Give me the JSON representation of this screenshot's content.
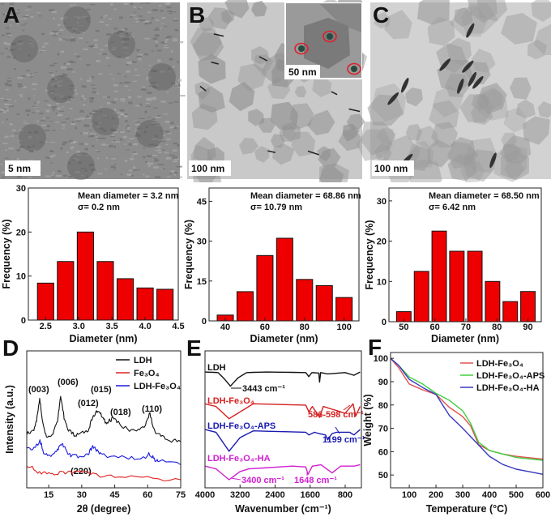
{
  "images": [
    {
      "label": "A",
      "scale_bar": "5 nm"
    },
    {
      "label": "B",
      "scale_bar": "100 nm",
      "inset_scale_bar": "50 nm",
      "inset_marker_color": "#e0202a"
    },
    {
      "label": "C",
      "scale_bar": "100 nm"
    }
  ],
  "chart_data": [
    {
      "type": "bar",
      "panel": "A",
      "annotation": [
        "Mean diameter = 3.2 nm",
        "σ= 0.2 nm"
      ],
      "xlabel": "Diameter (nm)",
      "ylabel": "Frequency (%)",
      "x": [
        2.5,
        2.8,
        3.1,
        3.4,
        3.7,
        4.0,
        4.3
      ],
      "values": [
        8.4,
        13.3,
        20.0,
        13.3,
        9.4,
        7.3,
        7.0
      ],
      "xlim": [
        2.24,
        4.5
      ],
      "ylim": [
        0,
        30
      ],
      "xticks": [
        "2.5",
        "3.0",
        "3.5",
        "4.0",
        "4.5"
      ],
      "yticks": [
        "0",
        "10",
        "20",
        "30"
      ],
      "bar_color": "#ee0000"
    },
    {
      "type": "bar",
      "panel": "B",
      "annotation": [
        "Mean diameter = 68.86 nm",
        "σ= 10.79 nm"
      ],
      "xlabel": "Diameter (nm)",
      "ylabel": "Frequency (%)",
      "x": [
        40,
        50,
        60,
        70,
        80,
        90,
        100
      ],
      "values": [
        2.2,
        11.0,
        24.6,
        31.1,
        15.6,
        13.3,
        8.8
      ],
      "xlim": [
        31.8,
        107.5
      ],
      "ylim": [
        0,
        50
      ],
      "xticks": [
        "40",
        "60",
        "80",
        "100"
      ],
      "yticks": [
        "0",
        "15",
        "30",
        "45"
      ],
      "bar_color": "#ee0000"
    },
    {
      "type": "bar",
      "panel": "C",
      "annotation": [
        "Mean diameter = 68.50 nm",
        "σ= 6.42 nm"
      ],
      "xlabel": "Diameter (nm)",
      "ylabel": "Frequency (%)",
      "x": [
        50,
        55.7,
        61.4,
        67.1,
        72.9,
        78.6,
        84.3,
        90
      ],
      "values": [
        2.5,
        12.5,
        22.5,
        17.5,
        17.5,
        10.0,
        5.0,
        7.5
      ],
      "xlim": [
        45.2,
        94.3
      ],
      "ylim": [
        0,
        33.2
      ],
      "xticks": [
        "50",
        "60",
        "70",
        "80",
        "90"
      ],
      "yticks": [
        "0",
        "10",
        "20",
        "30"
      ],
      "bar_color": "#ee0000"
    },
    {
      "type": "line",
      "panel": "D",
      "xlabel": "2θ (degree)",
      "ylabel": "Intensity (a.u.)",
      "xlim": [
        5,
        75
      ],
      "ylim": [
        0,
        101
      ],
      "xticks": [
        "15",
        "30",
        "45",
        "60",
        "75"
      ],
      "yticks": [],
      "legend": "top-right",
      "series": [
        {
          "name": "LDH",
          "color": "#111111",
          "points": [
            [
              5,
              40
            ],
            [
              8,
              41
            ],
            [
              9.5,
              50
            ],
            [
              10.9,
              66
            ],
            [
              12,
              50
            ],
            [
              14,
              37
            ],
            [
              17,
              40
            ],
            [
              19,
              50
            ],
            [
              20.4,
              68
            ],
            [
              22,
              52
            ],
            [
              24,
              42
            ],
            [
              27,
              39
            ],
            [
              30,
              40
            ],
            [
              33,
              43
            ],
            [
              35,
              52
            ],
            [
              37,
              57
            ],
            [
              39,
              54
            ],
            [
              41,
              48
            ],
            [
              43,
              50
            ],
            [
              45,
              51
            ],
            [
              47,
              47
            ],
            [
              50,
              44
            ],
            [
              55,
              41
            ],
            [
              59,
              46
            ],
            [
              61,
              55
            ],
            [
              63,
              42
            ],
            [
              66,
              38
            ],
            [
              70,
              35
            ],
            [
              75,
              34
            ]
          ]
        },
        {
          "name": "Fe₃O₄",
          "color": "#e02020",
          "points": [
            [
              5,
              17
            ],
            [
              10,
              12
            ],
            [
              15,
              10
            ],
            [
              20,
              11
            ],
            [
              25,
              12
            ],
            [
              29,
              13
            ],
            [
              35,
              10
            ],
            [
              45,
              8
            ],
            [
              60,
              7
            ],
            [
              75,
              6
            ]
          ]
        },
        {
          "name": "LDH-Fe₃O₄",
          "color": "#1a1ae0",
          "points": [
            [
              5,
              28
            ],
            [
              9,
              30
            ],
            [
              11,
              35
            ],
            [
              13,
              25
            ],
            [
              16,
              23
            ],
            [
              19,
              28
            ],
            [
              21,
              33
            ],
            [
              23,
              27
            ],
            [
              25,
              24
            ],
            [
              30,
              23
            ],
            [
              33,
              25
            ],
            [
              35,
              31
            ],
            [
              37,
              27
            ],
            [
              40,
              24
            ],
            [
              50,
              22
            ],
            [
              58,
              22
            ],
            [
              61,
              25
            ],
            [
              63,
              21
            ],
            [
              65,
              20
            ],
            [
              75,
              17
            ]
          ]
        }
      ],
      "peak_labels": [
        "(003)",
        "(006)",
        "(012)",
        "(015)",
        "(018)",
        "(110)",
        "(220)"
      ]
    },
    {
      "type": "line",
      "panel": "E",
      "xlabel": "Wavenumber (cm⁻¹)",
      "ylabel": "",
      "xlim": [
        4000,
        430
      ],
      "ylim": [
        0,
        101
      ],
      "xticks": [
        "4000",
        "3200",
        "2400",
        "1600",
        "800"
      ],
      "yticks": [],
      "series": [
        {
          "name": "LDH",
          "color": "#111111",
          "points": [
            [
              4000,
              85.4
            ],
            [
              3700,
              85
            ],
            [
              3550,
              80
            ],
            [
              3420,
              75
            ],
            [
              3250,
              81
            ],
            [
              3050,
              85
            ],
            [
              2600,
              85.4
            ],
            [
              1700,
              85
            ],
            [
              1630,
              82
            ],
            [
              1560,
              85
            ],
            [
              1400,
              84.6
            ],
            [
              1385,
              78
            ],
            [
              1360,
              85
            ],
            [
              1200,
              84
            ],
            [
              800,
              85
            ],
            [
              600,
              83
            ],
            [
              460,
              85.4
            ]
          ]
        },
        {
          "name": "LDH-Fe₃O₄",
          "color": "#d42020",
          "points": [
            [
              4000,
              62
            ],
            [
              3750,
              60
            ],
            [
              3450,
              51
            ],
            [
              3200,
              56
            ],
            [
              2900,
              62
            ],
            [
              1700,
              61
            ],
            [
              1630,
              56
            ],
            [
              1550,
              60
            ],
            [
              1385,
              52
            ],
            [
              1300,
              60
            ],
            [
              1000,
              57
            ],
            [
              800,
              55
            ],
            [
              620,
              62
            ],
            [
              560,
              53
            ],
            [
              460,
              60
            ]
          ]
        },
        {
          "name": "LDH-Fe₃O₄-APS",
          "color": "#1a1ab0",
          "points": [
            [
              4000,
              43
            ],
            [
              3750,
              41
            ],
            [
              3450,
              27
            ],
            [
              3200,
              37
            ],
            [
              2900,
              42
            ],
            [
              1700,
              41
            ],
            [
              1630,
              39
            ],
            [
              1500,
              41
            ],
            [
              1400,
              40
            ],
            [
              1250,
              39
            ],
            [
              1199,
              35.4
            ],
            [
              1100,
              40
            ],
            [
              1000,
              41
            ],
            [
              700,
              41
            ],
            [
              600,
              39
            ],
            [
              460,
              43
            ]
          ]
        },
        {
          "name": "LDH-Fe₃O₄-HA",
          "color": "#d020d0",
          "points": [
            [
              4000,
              16
            ],
            [
              3750,
              14
            ],
            [
              3450,
              6
            ],
            [
              3200,
              12
            ],
            [
              3000,
              14
            ],
            [
              2000,
              16
            ],
            [
              1700,
              15.4
            ],
            [
              1648,
              10
            ],
            [
              1550,
              16
            ],
            [
              1350,
              17
            ],
            [
              1100,
              11
            ],
            [
              900,
              16
            ],
            [
              600,
              16
            ],
            [
              460,
              17
            ]
          ]
        }
      ],
      "annotations": [
        {
          "text": "3443 cm⁻¹",
          "color": "#111111"
        },
        {
          "text": "586-598 cm⁻¹",
          "color": "#d42020"
        },
        {
          "text": "1199 cm⁻¹",
          "color": "#1a1ab0"
        },
        {
          "text": "3400 cm⁻¹",
          "color": "#d020d0"
        },
        {
          "text": "1648 cm⁻¹",
          "color": "#d020d0"
        }
      ]
    },
    {
      "type": "line",
      "panel": "F",
      "xlabel": "Temperature (°C)",
      "ylabel": "Weight (%)",
      "xlim": [
        30,
        600
      ],
      "ylim": [
        44.5,
        102.5
      ],
      "xticks": [
        "100",
        "200",
        "300",
        "400",
        "500",
        "600"
      ],
      "yticks": [
        "50",
        "60",
        "70",
        "80",
        "90",
        "100"
      ],
      "legend": "top-right",
      "series": [
        {
          "name": "LDH-Fe₃O₄",
          "color": "#e05050",
          "points": [
            [
              30,
              100
            ],
            [
              60,
              96
            ],
            [
              100,
              89
            ],
            [
              150,
              86.5
            ],
            [
              200,
              84.5
            ],
            [
              250,
              79
            ],
            [
              300,
              75
            ],
            [
              330,
              71
            ],
            [
              360,
              63
            ],
            [
              400,
              60.5
            ],
            [
              450,
              59
            ],
            [
              500,
              58
            ],
            [
              600,
              56.8
            ]
          ]
        },
        {
          "name": "LDH-Fe₃O₄-APS",
          "color": "#40d040",
          "points": [
            [
              30,
              100
            ],
            [
              60,
              97
            ],
            [
              100,
              92
            ],
            [
              150,
              89
            ],
            [
              200,
              85
            ],
            [
              250,
              82
            ],
            [
              300,
              77.5
            ],
            [
              330,
              72
            ],
            [
              360,
              64
            ],
            [
              400,
              60.5
            ],
            [
              450,
              59
            ],
            [
              500,
              57.5
            ],
            [
              600,
              56.3
            ]
          ]
        },
        {
          "name": "LDH-Fe₃O₄-HA",
          "color": "#3838c0",
          "points": [
            [
              30,
              100
            ],
            [
              60,
              97
            ],
            [
              100,
              91
            ],
            [
              150,
              87.5
            ],
            [
              200,
              84.5
            ],
            [
              250,
              75.5
            ],
            [
              300,
              70
            ],
            [
              350,
              64
            ],
            [
              400,
              58
            ],
            [
              450,
              54.5
            ],
            [
              500,
              52.5
            ],
            [
              600,
              50.3
            ]
          ]
        }
      ]
    }
  ]
}
